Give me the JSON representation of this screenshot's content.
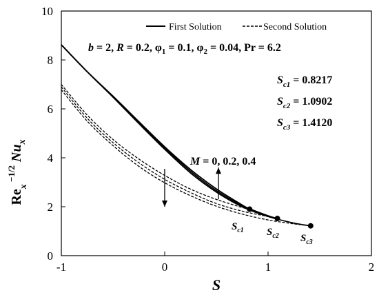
{
  "chart_data": {
    "type": "line",
    "xlabel": "S",
    "ylabel": "Re_x^(-1/2) Nu_x",
    "xlim": [
      -1,
      2
    ],
    "ylim": [
      0,
      10
    ],
    "x_ticks": [
      "-1",
      "0",
      "1",
      "2"
    ],
    "y_ticks": [
      "0",
      "2",
      "4",
      "6",
      "8",
      "10"
    ],
    "legend": {
      "position": "top-right",
      "entries": [
        {
          "label": "First Solution",
          "style": "solid"
        },
        {
          "label": "Second Solution",
          "style": "dashed"
        }
      ]
    },
    "annotations": {
      "params": "b = 2, R = 0.2, φ1 = 0.1, φ2 = 0.04, Pr = 6.2",
      "sc1_text": "Sc1 = 0.8217",
      "sc2_text": "Sc2 = 1.0902",
      "sc3_text": "Sc3 = 1.4120",
      "m_label": "M = 0, 0.2, 0.4",
      "crit_labels": [
        "Sc1",
        "Sc2",
        "Sc3"
      ]
    },
    "series": [
      {
        "name": "First Solution, M = 0",
        "style": "solid",
        "x": [
          -1,
          -0.75,
          -0.5,
          -0.25,
          0,
          0.25,
          0.5,
          0.75,
          0.8217
        ],
        "y": [
          8.62,
          7.52,
          6.52,
          5.48,
          4.45,
          3.52,
          2.73,
          2.07,
          1.9
        ]
      },
      {
        "name": "First Solution, M = 0.2",
        "style": "solid",
        "x": [
          -1,
          -0.75,
          -0.5,
          -0.25,
          0,
          0.25,
          0.5,
          0.75,
          1.0,
          1.0902
        ],
        "y": [
          8.62,
          7.52,
          6.5,
          5.43,
          4.4,
          3.45,
          2.66,
          2.05,
          1.63,
          1.52
        ]
      },
      {
        "name": "First Solution, M = 0.4",
        "style": "solid",
        "x": [
          -1,
          -0.75,
          -0.5,
          -0.25,
          0,
          0.25,
          0.5,
          0.75,
          1.0,
          1.25,
          1.412
        ],
        "y": [
          8.62,
          7.52,
          6.48,
          5.4,
          4.35,
          3.38,
          2.6,
          2.0,
          1.6,
          1.33,
          1.22
        ]
      },
      {
        "name": "Second Solution, M = 0",
        "style": "dashed",
        "x": [
          -1,
          -0.75,
          -0.5,
          -0.25,
          0,
          0.25,
          0.5,
          0.75,
          0.8217
        ],
        "y": [
          7.0,
          5.75,
          4.75,
          3.95,
          3.28,
          2.72,
          2.3,
          1.97,
          1.9
        ]
      },
      {
        "name": "Second Solution, M = 0.2",
        "style": "dashed",
        "x": [
          -1,
          -0.75,
          -0.5,
          -0.25,
          0,
          0.25,
          0.5,
          0.75,
          1.0,
          1.0902
        ],
        "y": [
          6.9,
          5.62,
          4.62,
          3.8,
          3.12,
          2.58,
          2.13,
          1.82,
          1.6,
          1.52
        ]
      },
      {
        "name": "Second Solution, M = 0.4",
        "style": "dashed",
        "x": [
          -1,
          -0.75,
          -0.5,
          -0.25,
          0,
          0.25,
          0.5,
          0.75,
          1.0,
          1.25,
          1.412
        ],
        "y": [
          6.78,
          5.5,
          4.5,
          3.65,
          2.98,
          2.45,
          2.02,
          1.7,
          1.46,
          1.3,
          1.22
        ]
      }
    ],
    "critical_points": [
      {
        "x": 0.8217,
        "y": 1.9
      },
      {
        "x": 1.0902,
        "y": 1.52
      },
      {
        "x": 1.412,
        "y": 1.22
      }
    ],
    "arrows": [
      {
        "x": 0.0,
        "y_from": 3.55,
        "y_to": 2.0,
        "direction": "down"
      },
      {
        "x": 0.52,
        "y_from": 2.3,
        "y_to": 3.6,
        "direction": "up"
      }
    ]
  }
}
